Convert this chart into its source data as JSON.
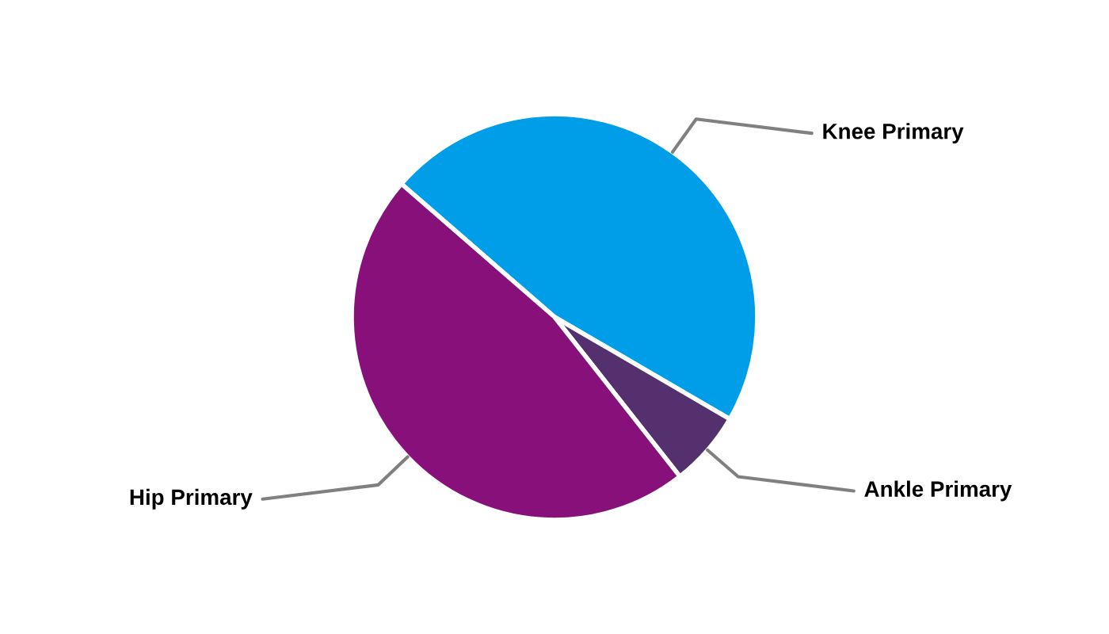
{
  "chart_data": {
    "type": "pie",
    "categories": [
      "Knee Primary",
      "Ankle Primary",
      "Hip Primary"
    ],
    "values": [
      47,
      6,
      47
    ],
    "colors": [
      "#009ee9",
      "#55306e",
      "#87107a"
    ]
  }
}
